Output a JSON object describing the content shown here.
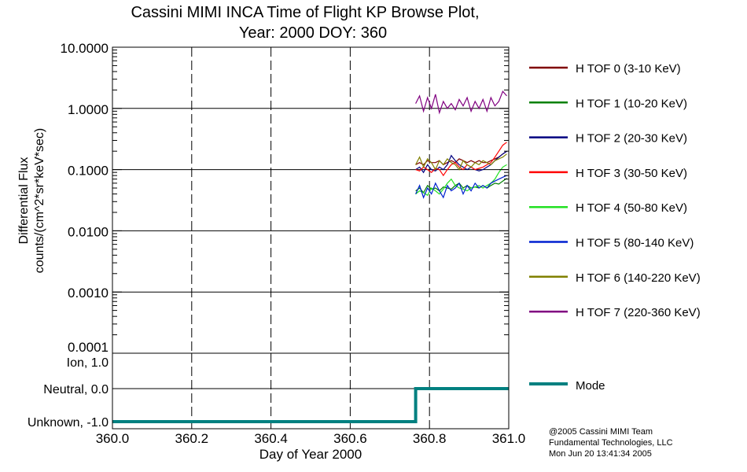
{
  "chart_data": {
    "type": "line",
    "title": "Cassini MIMI INCA Time of Flight KP Browse Plot,",
    "subtitle": "Year: 2000 DOY: 360",
    "xlabel": "Day of Year 2000",
    "ylabel_line1": "Differential Flux",
    "ylabel_line2": "counts/(cm^2*sr*keV*sec)",
    "xlim": [
      360.0,
      361.0
    ],
    "ylim": [
      0.0001,
      10.0
    ],
    "yscale": "log",
    "grid": true,
    "legend_placement": "right",
    "x_ticks": [
      "360.0",
      "360.2",
      "360.4",
      "360.6",
      "360.8",
      "361.0"
    ],
    "x_tick_values": [
      360.0,
      360.2,
      360.4,
      360.6,
      360.8,
      361.0
    ],
    "y_ticks": [
      "10.0000",
      "1.0000",
      "0.1000",
      "0.0100",
      "0.0010",
      "0.0001"
    ],
    "y_tick_values": [
      10,
      1,
      0.1,
      0.01,
      0.001,
      0.0001
    ],
    "x": [
      360.765,
      360.775,
      360.785,
      360.795,
      360.805,
      360.815,
      360.825,
      360.835,
      360.845,
      360.855,
      360.865,
      360.875,
      360.885,
      360.895,
      360.905,
      360.915,
      360.925,
      360.935,
      360.945,
      360.955,
      360.965,
      360.975,
      360.985,
      360.995
    ],
    "series": [
      {
        "name": "H TOF 0 (3-10 KeV)",
        "color": "#800000",
        "values": [
          0.12,
          0.13,
          0.12,
          0.14,
          0.13,
          0.13,
          0.14,
          0.12,
          0.13,
          0.14,
          0.13,
          0.15,
          0.14,
          0.13,
          0.14,
          0.13,
          0.14,
          0.13,
          0.13,
          0.14,
          0.15,
          0.16,
          0.18,
          0.2
        ]
      },
      {
        "name": "H TOF 1 (10-20 KeV)",
        "color": "#008000",
        "values": [
          0.045,
          0.05,
          0.042,
          0.055,
          0.048,
          0.05,
          0.045,
          0.052,
          0.05,
          0.048,
          0.055,
          0.06,
          0.05,
          0.055,
          0.05,
          0.052,
          0.05,
          0.055,
          0.05,
          0.055,
          0.06,
          0.058,
          0.065,
          0.072
        ]
      },
      {
        "name": "H TOF 2 (20-30 KeV)",
        "color": "#000080",
        "values": [
          0.1,
          0.11,
          0.09,
          0.12,
          0.1,
          0.095,
          0.11,
          0.1,
          0.12,
          0.17,
          0.14,
          0.12,
          0.11,
          0.1,
          0.11,
          0.1,
          0.095,
          0.1,
          0.11,
          0.12,
          0.14,
          0.16,
          0.18,
          0.2
        ]
      },
      {
        "name": "H TOF 3 (30-50 KeV)",
        "color": "#ff0000",
        "values": [
          0.1,
          0.095,
          0.11,
          0.1,
          0.09,
          0.105,
          0.1,
          0.08,
          0.1,
          0.12,
          0.13,
          0.11,
          0.1,
          0.12,
          0.11,
          0.1,
          0.105,
          0.11,
          0.12,
          0.13,
          0.16,
          0.2,
          0.25,
          0.28
        ]
      },
      {
        "name": "H TOF 4 (50-80 KeV)",
        "color": "#22e022",
        "values": [
          0.04,
          0.045,
          0.042,
          0.038,
          0.05,
          0.045,
          0.04,
          0.048,
          0.06,
          0.07,
          0.055,
          0.05,
          0.048,
          0.045,
          0.05,
          0.052,
          0.055,
          0.05,
          0.055,
          0.06,
          0.07,
          0.09,
          0.11,
          0.12
        ]
      },
      {
        "name": "H TOF 5 (80-140 KeV)",
        "color": "#0020d0",
        "values": [
          0.04,
          0.055,
          0.035,
          0.05,
          0.04,
          0.06,
          0.045,
          0.035,
          0.055,
          0.045,
          0.05,
          0.06,
          0.04,
          0.055,
          0.045,
          0.06,
          0.05,
          0.055,
          0.05,
          0.06,
          0.065,
          0.07,
          0.075,
          0.08
        ]
      },
      {
        "name": "H TOF 6 (140-220 KeV)",
        "color": "#808000",
        "values": [
          0.12,
          0.16,
          0.11,
          0.15,
          0.13,
          0.1,
          0.14,
          0.12,
          0.15,
          0.13,
          0.12,
          0.1,
          0.14,
          0.12,
          0.11,
          0.13,
          0.12,
          0.14,
          0.13,
          0.12,
          0.14,
          0.15,
          0.16,
          0.18
        ]
      },
      {
        "name": "H TOF 7 (220-360 KeV)",
        "color": "#800080",
        "values": [
          1.2,
          1.6,
          0.9,
          1.5,
          1.0,
          1.7,
          0.85,
          1.3,
          1.0,
          1.2,
          0.95,
          1.4,
          1.1,
          1.5,
          0.9,
          1.3,
          1.0,
          1.4,
          0.9,
          1.5,
          1.1,
          1.3,
          1.9,
          1.6
        ]
      }
    ],
    "mode_panel": {
      "y_ticks": [
        "Ion, 1.0",
        "Neutral, 0.0",
        "Unknown, -1.0"
      ],
      "y_tick_values": [
        1,
        0,
        -1
      ],
      "ylim": [
        -1.0,
        1.0
      ],
      "series": {
        "name": "Mode",
        "color": "#008080",
        "x": [
          360.0,
          360.765,
          360.765,
          361.0
        ],
        "values": [
          -1,
          -1,
          0,
          0
        ]
      }
    }
  },
  "footer": {
    "line1": "@2005 Cassini MIMI Team",
    "line2": "Fundamental Technologies, LLC",
    "line3": "Mon Jun 20 13:41:34 2005"
  }
}
